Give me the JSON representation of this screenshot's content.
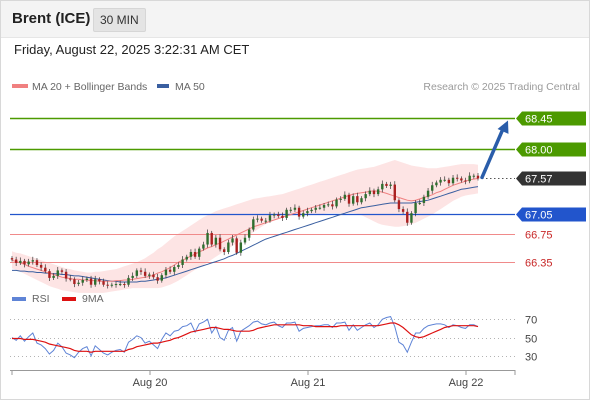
{
  "header": {
    "title": "Brent (ICE)",
    "timeframe": "30 MIN",
    "datetime": "Friday, August 22, 2025 3:22:31 AM CET"
  },
  "legend": {
    "ma20": "MA 20 + Bollinger Bands",
    "ma50": "MA 50",
    "credit": "Research © 2025 Trading Central"
  },
  "rsi_legend": {
    "rsi": "RSI",
    "ma9": "9MA"
  },
  "colors": {
    "target": "#4c9a00",
    "pivot": "#2255cc",
    "support": "#f08a8a",
    "support_text": "#c82828",
    "last": "#333333",
    "band_fill": "#fde4e4",
    "ma20": "#f08080",
    "ma50": "#3a5fa0",
    "candle_up": "#2e6e2e",
    "candle_down": "#aa2020",
    "arrow": "#2a5daa",
    "rsi": "#5f84d6",
    "ma9": "#dd1111"
  },
  "chart_data": [
    {
      "type": "candlestick",
      "title": "Brent (ICE)",
      "timeframe": "30 MIN",
      "x_labels": [
        "Aug 20",
        "Aug 21",
        "Aug 22"
      ],
      "ylim": [
        66.05,
        68.78
      ],
      "levels": [
        {
          "label": "68.45",
          "value": 68.45,
          "kind": "target"
        },
        {
          "label": "68.00",
          "value": 68.0,
          "kind": "target"
        },
        {
          "label": "67.57",
          "value": 67.57,
          "kind": "last"
        },
        {
          "label": "67.05",
          "value": 67.05,
          "kind": "pivot"
        },
        {
          "label": "66.75",
          "value": 66.75,
          "kind": "support"
        },
        {
          "label": "66.35",
          "value": 66.35,
          "kind": "support"
        }
      ],
      "close": [
        66.38,
        66.33,
        66.36,
        66.31,
        66.35,
        66.37,
        66.3,
        66.26,
        66.21,
        66.11,
        66.14,
        66.22,
        66.2,
        66.1,
        66.09,
        66.02,
        66.04,
        66.08,
        66.1,
        66.01,
        66.09,
        66.06,
        66.01,
        66.0,
        66.01,
        66.02,
        66.02,
        66.01,
        66.11,
        66.14,
        66.22,
        66.2,
        66.14,
        66.16,
        66.12,
        66.07,
        66.15,
        66.23,
        66.2,
        66.27,
        66.3,
        66.38,
        66.42,
        66.49,
        66.42,
        66.54,
        66.6,
        66.77,
        66.6,
        66.7,
        66.53,
        66.49,
        66.63,
        66.69,
        66.48,
        66.63,
        66.7,
        66.82,
        66.97,
        66.98,
        66.95,
        66.95,
        67.03,
        67.04,
        67.02,
        66.99,
        67.11,
        67.11,
        67.14,
        67.01,
        67.06,
        67.09,
        67.11,
        67.14,
        67.14,
        67.18,
        67.19,
        67.16,
        67.26,
        67.27,
        67.33,
        67.2,
        67.31,
        67.22,
        67.28,
        67.34,
        67.39,
        67.34,
        67.41,
        67.49,
        67.46,
        67.48,
        67.25,
        67.12,
        67.08,
        66.92,
        67.06,
        67.21,
        67.21,
        67.3,
        67.39,
        67.47,
        67.51,
        67.55,
        67.55,
        67.5,
        67.58,
        67.57,
        67.54,
        67.53,
        67.61,
        67.61,
        67.57
      ],
      "ma20": [
        66.37,
        66.35,
        66.33,
        66.31,
        66.28,
        66.26,
        66.24,
        66.22,
        66.2,
        66.18,
        66.16,
        66.14,
        66.12,
        66.11,
        66.1,
        66.09,
        66.09,
        66.08,
        66.08,
        66.07,
        66.07,
        66.06,
        66.06,
        66.06,
        66.06,
        66.07,
        66.07,
        66.08,
        66.08,
        66.09,
        66.1,
        66.11,
        66.12,
        66.13,
        66.15,
        66.18,
        66.2,
        66.23,
        66.26,
        66.3,
        66.34,
        66.37,
        66.4,
        66.43,
        66.46,
        66.49,
        66.52,
        66.55,
        66.57,
        66.6,
        66.62,
        66.65,
        66.68,
        66.71,
        66.74,
        66.77,
        66.8,
        66.83,
        66.86,
        66.88,
        66.9,
        66.92,
        66.94,
        66.96,
        66.98,
        67.0,
        67.02,
        67.04,
        67.06,
        67.08,
        67.1,
        67.12,
        67.14,
        67.16,
        67.18,
        67.2,
        67.22,
        67.24,
        67.26,
        67.28,
        67.3,
        67.32,
        67.34,
        67.35,
        67.36,
        67.37,
        67.38,
        67.39,
        67.38,
        67.37,
        67.35,
        67.33,
        67.31,
        67.29,
        67.27,
        67.25,
        67.24,
        67.25,
        67.27,
        67.29,
        67.31,
        67.33,
        67.36,
        67.38,
        67.41,
        67.44,
        67.47,
        67.49,
        67.51,
        67.53,
        67.55,
        67.56,
        67.57
      ],
      "bb_upper": [
        66.5,
        66.48,
        66.47,
        66.45,
        66.43,
        66.41,
        66.39,
        66.37,
        66.35,
        66.33,
        66.31,
        66.29,
        66.27,
        66.25,
        66.24,
        66.22,
        66.21,
        66.2,
        66.19,
        66.19,
        66.2,
        66.2,
        66.21,
        66.22,
        66.23,
        66.24,
        66.26,
        66.28,
        66.3,
        66.32,
        66.34,
        66.37,
        66.4,
        66.44,
        66.48,
        66.53,
        66.57,
        66.62,
        66.67,
        66.72,
        66.76,
        66.8,
        66.84,
        66.88,
        66.92,
        66.96,
        67.0,
        67.03,
        67.06,
        67.09,
        67.11,
        67.13,
        67.15,
        67.17,
        67.19,
        67.21,
        67.23,
        67.25,
        67.27,
        67.28,
        67.29,
        67.3,
        67.31,
        67.32,
        67.33,
        67.34,
        67.36,
        67.38,
        67.4,
        67.42,
        67.44,
        67.46,
        67.48,
        67.5,
        67.52,
        67.54,
        67.56,
        67.58,
        67.6,
        67.62,
        67.64,
        67.66,
        67.68,
        67.7,
        67.71,
        67.72,
        67.73,
        67.74,
        67.76,
        67.78,
        67.8,
        67.82,
        67.84,
        67.82,
        67.8,
        67.78,
        67.76,
        67.75,
        67.74,
        67.73,
        67.72,
        67.72,
        67.72,
        67.73,
        67.74,
        67.75,
        67.76,
        67.77,
        67.78,
        67.78,
        67.78,
        67.78,
        67.77
      ],
      "bb_lower": [
        66.25,
        66.23,
        66.2,
        66.17,
        66.14,
        66.11,
        66.08,
        66.05,
        66.02,
        65.99,
        65.97,
        65.95,
        65.93,
        65.92,
        65.91,
        65.9,
        65.89,
        65.89,
        65.89,
        65.89,
        65.89,
        65.89,
        65.89,
        65.9,
        65.91,
        65.92,
        65.93,
        65.94,
        65.95,
        65.96,
        65.96,
        65.96,
        65.96,
        65.96,
        65.96,
        65.96,
        65.97,
        65.99,
        66.01,
        66.04,
        66.07,
        66.11,
        66.15,
        66.19,
        66.23,
        66.27,
        66.3,
        66.34,
        66.38,
        66.42,
        66.46,
        66.5,
        66.54,
        66.58,
        66.62,
        66.66,
        66.7,
        66.74,
        66.78,
        66.82,
        66.86,
        66.9,
        66.93,
        66.96,
        66.99,
        67.0,
        67.01,
        67.02,
        67.03,
        67.04,
        67.05,
        67.05,
        67.05,
        67.05,
        67.05,
        67.05,
        67.06,
        67.06,
        67.06,
        67.06,
        67.06,
        67.06,
        67.06,
        67.05,
        67.03,
        67.0,
        66.97,
        66.94,
        66.91,
        66.89,
        66.88,
        66.87,
        66.86,
        66.86,
        66.87,
        66.88,
        66.9,
        66.92,
        66.95,
        66.98,
        67.01,
        67.04,
        67.08,
        67.12,
        67.16,
        67.2,
        67.24,
        67.27,
        67.3,
        67.32,
        67.33,
        67.34,
        67.35
      ],
      "ma50": [
        66.22,
        66.22,
        66.21,
        66.21,
        66.2,
        66.2,
        66.19,
        66.19,
        66.18,
        66.18,
        66.17,
        66.17,
        66.16,
        66.16,
        66.15,
        66.14,
        66.14,
        66.13,
        66.12,
        66.11,
        66.1,
        66.09,
        66.08,
        66.07,
        66.06,
        66.06,
        66.05,
        66.05,
        66.05,
        66.05,
        66.05,
        66.06,
        66.06,
        66.07,
        66.08,
        66.09,
        66.1,
        66.11,
        66.13,
        66.15,
        66.17,
        66.19,
        66.21,
        66.23,
        66.25,
        66.27,
        66.29,
        66.31,
        66.33,
        66.35,
        66.37,
        66.39,
        66.42,
        66.44,
        66.47,
        66.5,
        66.53,
        66.56,
        66.59,
        66.62,
        66.65,
        66.68,
        66.7,
        66.72,
        66.74,
        66.76,
        66.78,
        66.8,
        66.82,
        66.84,
        66.86,
        66.88,
        66.9,
        66.92,
        66.94,
        66.96,
        66.98,
        67.0,
        67.02,
        67.04,
        67.06,
        67.08,
        67.1,
        67.12,
        67.14,
        67.15,
        67.16,
        67.17,
        67.18,
        67.19,
        67.2,
        67.21,
        67.21,
        67.21,
        67.21,
        67.21,
        67.21,
        67.22,
        67.23,
        67.24,
        67.25,
        67.27,
        67.29,
        67.31,
        67.33,
        67.35,
        67.37,
        67.39,
        67.41,
        67.42,
        67.43,
        67.44,
        67.45
      ]
    },
    {
      "type": "line",
      "title": "RSI",
      "ylim": [
        20,
        78
      ],
      "yticks": [
        70,
        50,
        30
      ],
      "series": [
        {
          "name": "RSI",
          "values": [
            50,
            47,
            52,
            46,
            51,
            55,
            44,
            42,
            38,
            32,
            36,
            44,
            40,
            33,
            31,
            28,
            34,
            38,
            40,
            30,
            41,
            37,
            33,
            31,
            34,
            36,
            37,
            34,
            45,
            48,
            52,
            50,
            44,
            46,
            42,
            38,
            48,
            55,
            52,
            57,
            58,
            62,
            63,
            66,
            56,
            65,
            67,
            70,
            55,
            62,
            50,
            47,
            58,
            61,
            46,
            57,
            60,
            63,
            67,
            68,
            65,
            64,
            66,
            67,
            63,
            61,
            66,
            66,
            67,
            57,
            60,
            61,
            62,
            63,
            63,
            64,
            64,
            61,
            66,
            66,
            67,
            58,
            64,
            58,
            61,
            64,
            66,
            61,
            64,
            70,
            72,
            73,
            62,
            45,
            42,
            34,
            45,
            55,
            55,
            60,
            63,
            64,
            65,
            65,
            64,
            61,
            64,
            63,
            61,
            60,
            64,
            64,
            62
          ]
        },
        {
          "name": "9MA",
          "values": [
            49,
            49,
            49,
            48,
            48,
            48,
            47,
            46,
            45,
            43,
            42,
            41,
            40,
            39,
            38,
            36,
            35,
            35,
            35,
            34,
            35,
            35,
            35,
            35,
            35,
            35,
            35,
            35,
            37,
            38,
            40,
            41,
            42,
            43,
            44,
            44,
            45,
            46,
            47,
            49,
            50,
            52,
            54,
            56,
            57,
            58,
            59,
            60,
            61,
            61,
            60,
            59,
            59,
            58,
            57,
            57,
            57,
            57,
            58,
            60,
            61,
            62,
            63,
            64,
            64,
            64,
            64,
            64,
            64,
            64,
            63,
            63,
            63,
            62,
            62,
            62,
            62,
            62,
            62,
            63,
            63,
            63,
            63,
            63,
            63,
            63,
            63,
            63,
            63,
            64,
            65,
            66,
            66,
            64,
            61,
            57,
            53,
            51,
            50,
            51,
            53,
            55,
            57,
            59,
            61,
            62,
            63,
            63,
            63,
            63,
            63,
            63,
            62
          ]
        }
      ]
    }
  ]
}
